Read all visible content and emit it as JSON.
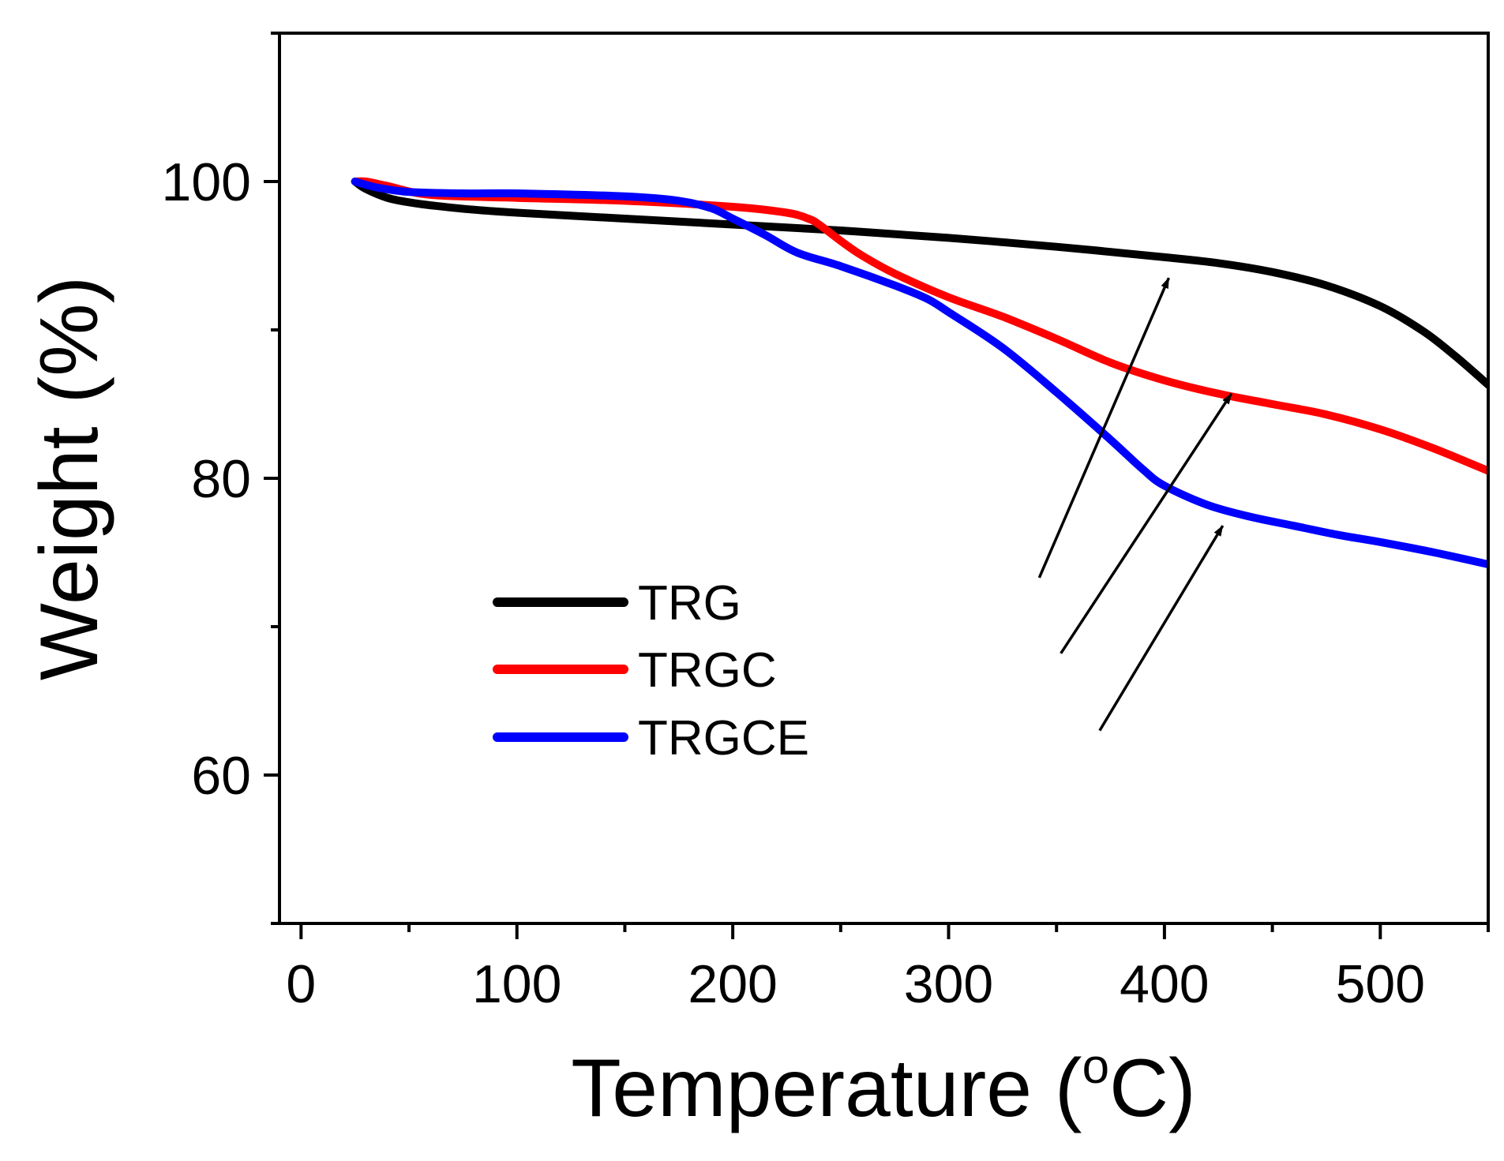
{
  "chart_data": {
    "type": "line",
    "title": "",
    "xlabel": "Temperature (",
    "xlabel_sup": "o",
    "xlabel_tail": "C)",
    "ylabel": "Weight (%)",
    "xlim": [
      -10,
      550
    ],
    "ylim": [
      50,
      110
    ],
    "xticks": [
      0,
      100,
      200,
      300,
      400,
      500
    ],
    "xtick_labels": [
      "0",
      "100",
      "200",
      "300",
      "400",
      "500"
    ],
    "xminor": [
      50,
      150,
      250,
      350,
      450,
      550
    ],
    "yticks": [
      60,
      80,
      100
    ],
    "ytick_labels": [
      "60",
      "80",
      "100"
    ],
    "yminor": [
      50,
      70,
      90,
      110
    ],
    "grid": false,
    "legend_position": "center-left",
    "series": [
      {
        "name": "TRG",
        "color": "#000000",
        "x": [
          25,
          30,
          40,
          50,
          60,
          80,
          100,
          150,
          200,
          250,
          300,
          350,
          400,
          425,
          450,
          475,
          500,
          520,
          535,
          550
        ],
        "y": [
          100,
          99.5,
          98.9,
          98.6,
          98.4,
          98.1,
          97.9,
          97.5,
          97.1,
          96.7,
          96.2,
          95.6,
          94.9,
          94.5,
          93.9,
          93.0,
          91.6,
          89.9,
          88.2,
          86.3
        ]
      },
      {
        "name": "TRGC",
        "color": "#ff0000",
        "x": [
          25,
          30,
          40,
          60,
          100,
          150,
          200,
          225,
          235,
          240,
          250,
          260,
          275,
          300,
          325,
          350,
          375,
          400,
          425,
          450,
          475,
          500,
          525,
          550
        ],
        "y": [
          100,
          100,
          99.7,
          99.1,
          98.9,
          98.7,
          98.3,
          97.9,
          97.5,
          97.1,
          96.0,
          95.0,
          93.8,
          92.2,
          90.9,
          89.4,
          87.8,
          86.6,
          85.7,
          85.0,
          84.3,
          83.3,
          82.0,
          80.5
        ]
      },
      {
        "name": "TRGCE",
        "color": "#0000ff",
        "x": [
          25,
          35,
          50,
          75,
          100,
          150,
          175,
          190,
          200,
          215,
          230,
          250,
          275,
          290,
          300,
          325,
          350,
          375,
          390,
          400,
          420,
          440,
          460,
          480,
          500,
          525,
          550
        ],
        "y": [
          100,
          99.6,
          99.3,
          99.2,
          99.2,
          99.0,
          98.7,
          98.2,
          97.5,
          96.4,
          95.2,
          94.3,
          93.0,
          92.1,
          91.2,
          88.8,
          85.8,
          82.6,
          80.6,
          79.5,
          78.2,
          77.4,
          76.8,
          76.2,
          75.7,
          75.0,
          74.2
        ]
      }
    ],
    "annotations": [
      {
        "label": "TRG arrow",
        "from": [
          342,
          73.3
        ],
        "to": [
          402,
          93.5
        ]
      },
      {
        "label": "TRGC arrow",
        "from": [
          352,
          68.2
        ],
        "to": [
          431,
          85.7
        ]
      },
      {
        "label": "TRGCE arrow",
        "from": [
          370,
          63.0
        ],
        "to": [
          427,
          76.8
        ]
      }
    ]
  }
}
